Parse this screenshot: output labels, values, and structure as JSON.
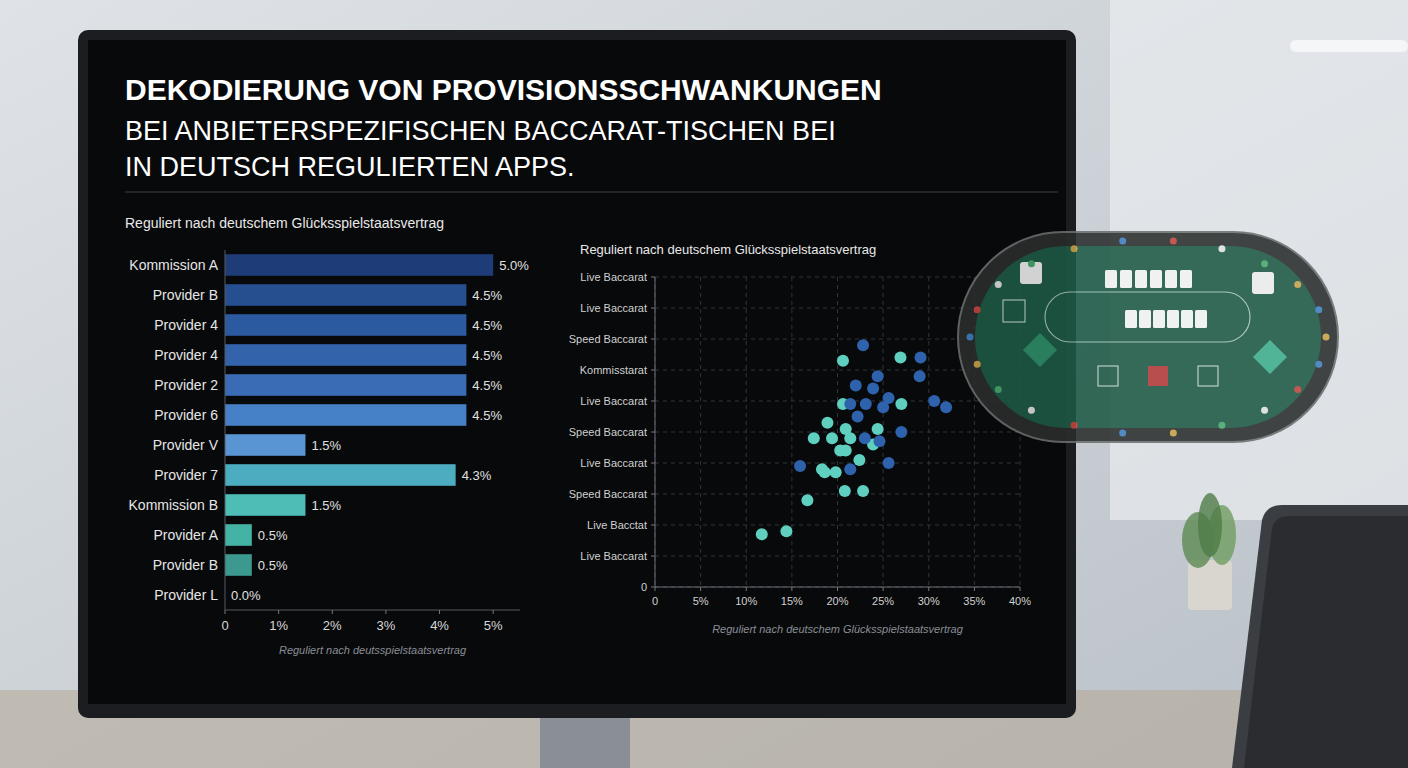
{
  "title": {
    "lines": [
      "DEKODIERUNG VON PROVISIONSSCHWANKUNGEN",
      "BEI ANBIETERSPEZIFISCHEN BACCARAT-TISCHEN BEI",
      "IN DEUTSCH REGULIERTEN APPS."
    ]
  },
  "chart_data": [
    {
      "type": "bar",
      "orientation": "horizontal",
      "title": "Reguliert nach deutschem Glücksspielstaatsvertrag",
      "x_label": "Reguliert nach deutsspielstaatsvertrag",
      "categories": [
        "Kommission A",
        "Provider B",
        "Provider 4",
        "Provider 4",
        "Provider 2",
        "Provider 6",
        "Provider V",
        "Provider 7",
        "Kommission B",
        "Provider A",
        "Provider B",
        "Provider L"
      ],
      "values": [
        5.0,
        4.5,
        4.5,
        4.5,
        4.5,
        4.5,
        1.5,
        4.3,
        1.5,
        0.5,
        0.5,
        0.0
      ],
      "value_labels": [
        "5.0%",
        "4.5%",
        "4.5%",
        "4.5%",
        "4.5%",
        "4.5%",
        "1.5%",
        "4.3%",
        "1.5%",
        "0.5%",
        "0.5%",
        "0.0%"
      ],
      "colors": [
        "#1d3c78",
        "#264f90",
        "#2b5aa0",
        "#3363ab",
        "#3a6cb5",
        "#4680c6",
        "#5895d2",
        "#4cacc0",
        "#4dbdb6",
        "#45b2a6",
        "#3b998f",
        "#347f7a"
      ],
      "xlim": [
        0,
        5.5
      ],
      "xticks": [
        0,
        {
          "value": 1,
          "label": "1%"
        },
        {
          "value": 2,
          "label": "2%"
        },
        {
          "value": 3,
          "label": "3%"
        },
        {
          "value": 4,
          "label": "4%"
        },
        {
          "value": 5,
          "label": "5%"
        }
      ],
      "data_labels": true,
      "grid": false
    },
    {
      "type": "scatter",
      "title": "Reguliert nach deutschem Glücksspielstaatsvertrag",
      "x_label": "Reguliert nach deutschem Glücksspielstaatsvertrag",
      "x": [
        11.7,
        14.4,
        16.7,
        20.8,
        22.8,
        18.6,
        19.8,
        21.4,
        15.9,
        25.6,
        20.9,
        22.4,
        23.9,
        19.4,
        21.4,
        23.0,
        24.6,
        27.0,
        18.9,
        20.9,
        22.2,
        24.4,
        27.0,
        20.6,
        23.1,
        25.0,
        25.6,
        21.4,
        23.9,
        22.0,
        24.4,
        26.9,
        29.1,
        29.0,
        30.6,
        31.9,
        20.6,
        22.8,
        20.3,
        17.4,
        18.3
      ],
      "values": [
        1.7,
        1.8,
        2.8,
        3.1,
        3.1,
        3.7,
        3.7,
        3.8,
        3.9,
        4.0,
        4.4,
        4.1,
        4.6,
        4.8,
        4.8,
        4.8,
        4.7,
        5.0,
        5.3,
        5.1,
        5.5,
        5.1,
        5.9,
        5.9,
        5.9,
        5.8,
        6.1,
        5.9,
        6.4,
        6.5,
        6.8,
        7.4,
        7.4,
        6.8,
        6.0,
        5.8,
        7.3,
        7.8,
        4.4,
        4.8,
        3.8
      ],
      "colors": [
        "#5fd0c0",
        "#5fd0c0",
        "#5fd0c0",
        "#5fd0c0",
        "#5fd0c0",
        "#5fd0c0",
        "#5fd0c0",
        "#2f62ad",
        "#2f62ad",
        "#2f62ad",
        "#5fd0c0",
        "#5fd0c0",
        "#5fd0c0",
        "#5fd0c0",
        "#5fd0c0",
        "#2f62ad",
        "#2f62ad",
        "#2f62ad",
        "#5fd0c0",
        "#5fd0c0",
        "#2f62ad",
        "#5fd0c0",
        "#5fd0c0",
        "#5fd0c0",
        "#2f62ad",
        "#2f62ad",
        "#2f62ad",
        "#2f62ad",
        "#2f62ad",
        "#2f62ad",
        "#2f62ad",
        "#5fd0c0",
        "#2f62ad",
        "#2f62ad",
        "#2f62ad",
        "#2f62ad",
        "#5fd0c0",
        "#2f62ad",
        "#5fd0c0",
        "#5fd0c0",
        "#5fd0c0"
      ],
      "xlim": [
        0,
        40
      ],
      "xticks": [
        0,
        {
          "value": 5,
          "label": "5%"
        },
        {
          "value": 10,
          "label": "10%"
        },
        {
          "value": 15,
          "label": "15%"
        },
        {
          "value": 20,
          "label": "20%"
        },
        {
          "value": 25,
          "label": "25%"
        },
        {
          "value": 30,
          "label": "30%"
        },
        {
          "value": 35,
          "label": "35%"
        },
        {
          "value": 40,
          "label": "40%"
        }
      ],
      "ylim": [
        0,
        10
      ],
      "yticks": [
        0,
        {
          "value": 1,
          "label": "Live Baccarat"
        },
        {
          "value": 2,
          "label": "Live Bacctat"
        },
        {
          "value": 3,
          "label": "Speed Baccarat"
        },
        {
          "value": 4,
          "label": "Live Baccarat"
        },
        {
          "value": 5,
          "label": "Speed Baccarat"
        },
        {
          "value": 6,
          "label": "Live Baccarat"
        },
        {
          "value": 7,
          "label": "Kommisstarat"
        },
        {
          "value": 8,
          "label": "Speed Baccarat"
        },
        {
          "value": 9,
          "label": "Live Baccarat"
        },
        {
          "value": 10,
          "label": "Live Baccarat"
        }
      ],
      "grid": true,
      "marker": "circle"
    }
  ]
}
